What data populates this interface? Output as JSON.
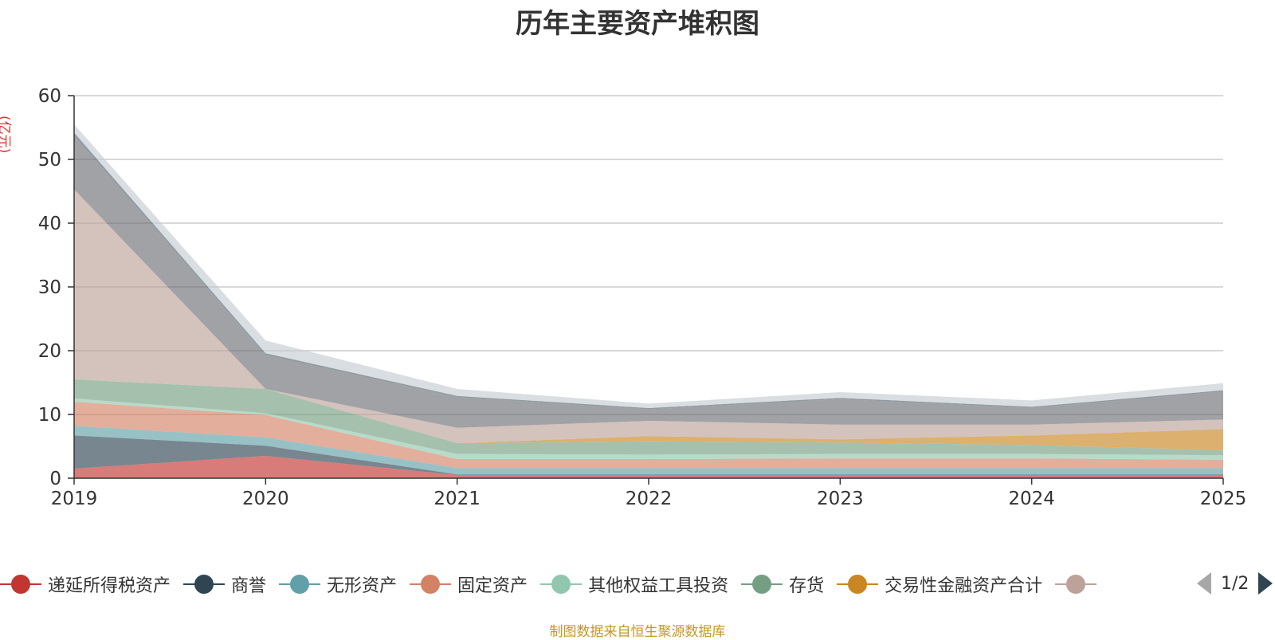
{
  "colors": {
    "series": [
      "#c23531",
      "#2f4554",
      "#61a0a8",
      "#d48265",
      "#91c7ae",
      "#749f83",
      "#ca8622",
      "#bda29a",
      "#6e7074",
      "#546570",
      "#c4ccd3"
    ],
    "source_text": "#c8971f",
    "unit_text": "#e03030"
  },
  "legend_pager": {
    "page_text": "1/2"
  },
  "source_note": "制图数据来自恒生聚源数据库",
  "chart_data": {
    "type": "area",
    "stacked": true,
    "title": "历年主要资产堆积图",
    "ylabel": "(亿元)",
    "xlabel": "",
    "categories": [
      "2019",
      "2020",
      "2021",
      "2022",
      "2023",
      "2024",
      "2025"
    ],
    "ylim": [
      0,
      60
    ],
    "yticks": [
      0,
      10,
      20,
      30,
      40,
      50,
      60
    ],
    "grid": true,
    "legend_position": "bottom",
    "series": [
      {
        "name": "递延所得税资产",
        "values": [
          1.5,
          3.5,
          0.5,
          0.5,
          0.5,
          0.5,
          0.5
        ]
      },
      {
        "name": "商誉",
        "values": [
          5.2,
          1.6,
          0.1,
          0.1,
          0.1,
          0.1,
          0.1
        ]
      },
      {
        "name": "无形资产",
        "values": [
          1.5,
          1.3,
          1.0,
          1.0,
          1.0,
          1.0,
          1.0
        ]
      },
      {
        "name": "固定资产",
        "values": [
          3.8,
          3.5,
          1.4,
          1.4,
          1.5,
          1.5,
          1.3
        ]
      },
      {
        "name": "其他权益工具投资",
        "values": [
          0.5,
          0.3,
          0.8,
          0.7,
          0.7,
          0.7,
          0.7
        ]
      },
      {
        "name": "存货",
        "values": [
          3.0,
          3.8,
          1.7,
          2.1,
          1.8,
          1.4,
          0.8
        ]
      },
      {
        "name": "交易性金融资产合计",
        "values": [
          0.0,
          0.0,
          0.0,
          0.8,
          0.5,
          1.5,
          3.3
        ]
      },
      {
        "name": "",
        "values": [
          29.8,
          0.0,
          2.4,
          2.4,
          2.3,
          1.7,
          1.5
        ]
      },
      {
        "name": "",
        "values": [
          8.4,
          5.3,
          4.8,
          1.8,
          4.0,
          2.6,
          4.4
        ]
      },
      {
        "name": "",
        "values": [
          0.5,
          0.3,
          0.2,
          0.2,
          0.2,
          0.2,
          0.2
        ]
      },
      {
        "name": "",
        "values": [
          1.3,
          2.0,
          1.1,
          0.7,
          0.9,
          1.0,
          1.1
        ]
      }
    ]
  }
}
